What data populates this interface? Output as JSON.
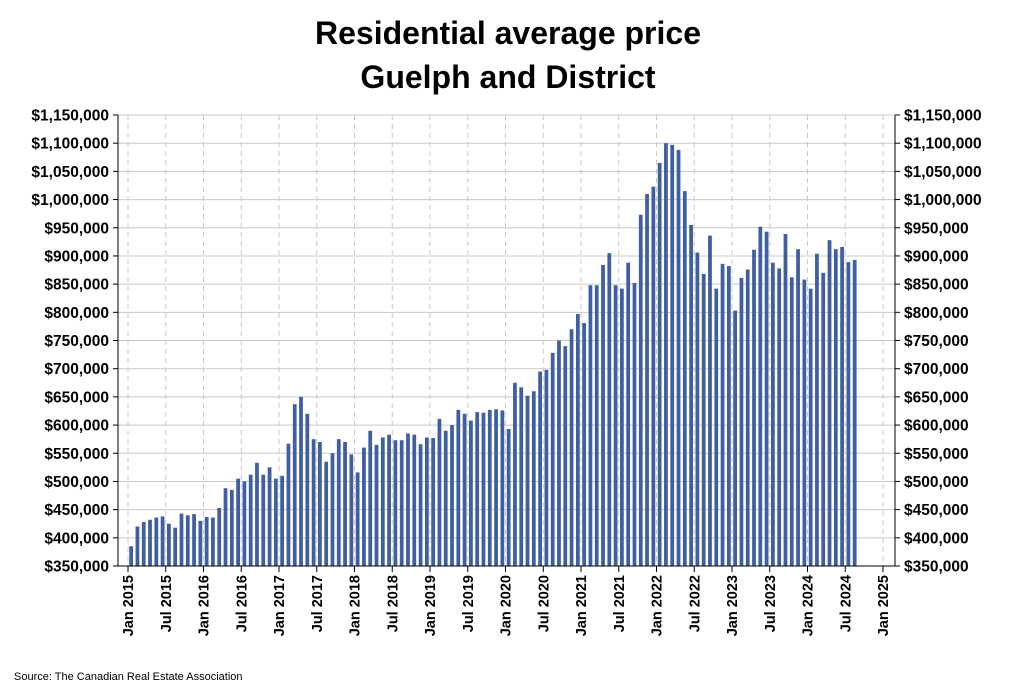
{
  "chart_data": {
    "type": "bar",
    "title": "Residential average price",
    "subtitle": "Guelph and District",
    "source": "Source: The Canadian Real Estate Association",
    "ylim": [
      350000,
      1150000
    ],
    "ytick_step": 50000,
    "ytick_labels": [
      "$350,000",
      "$400,000",
      "$450,000",
      "$500,000",
      "$550,000",
      "$600,000",
      "$650,000",
      "$700,000",
      "$750,000",
      "$800,000",
      "$850,000",
      "$900,000",
      "$950,000",
      "$1,000,000",
      "$1,050,000",
      "$1,100,000",
      "$1,150,000"
    ],
    "xtick_labels": [
      "Jan 2015",
      "Jul 2015",
      "Jan 2016",
      "Jul 2016",
      "Jan 2017",
      "Jul 2017",
      "Jan 2018",
      "Jul 2018",
      "Jan 2019",
      "Jul 2019",
      "Jan 2020",
      "Jul 2020",
      "Jan 2021",
      "Jul 2021",
      "Jan 2022",
      "Jul 2022",
      "Jan 2023",
      "Jul 2023",
      "Jan 2024",
      "Jul 2024",
      "Jan 2025"
    ],
    "x_axis_months": 120,
    "bar_color": "#3F5FA1",
    "grid": true,
    "series": [
      {
        "name": "Residential average price",
        "start": "Jan 2015",
        "values": [
          385000,
          420000,
          428000,
          432000,
          436000,
          438000,
          425000,
          418000,
          443000,
          440000,
          442000,
          430000,
          437000,
          436000,
          453000,
          488000,
          485000,
          505000,
          500000,
          512000,
          533000,
          512000,
          525000,
          505000,
          510000,
          567000,
          637000,
          650000,
          620000,
          575000,
          570000,
          535000,
          550000,
          575000,
          570000,
          548000,
          516000,
          560000,
          590000,
          565000,
          578000,
          583000,
          573000,
          573000,
          585000,
          583000,
          566000,
          578000,
          577000,
          611000,
          590000,
          600000,
          627000,
          620000,
          608000,
          623000,
          622000,
          627000,
          628000,
          626000,
          593000,
          675000,
          667000,
          652000,
          660000,
          695000,
          698000,
          728000,
          750000,
          740000,
          770000,
          797000,
          781000,
          848000,
          848000,
          884000,
          905000,
          848000,
          842000,
          888000,
          852000,
          973000,
          1010000,
          1023000,
          1065000,
          1100000,
          1097000,
          1088000,
          1015000,
          955000,
          906000,
          868000,
          936000,
          842000,
          886000,
          882000,
          803000,
          861000,
          876000,
          911000,
          952000,
          943000,
          888000,
          878000,
          939000,
          862000,
          912000,
          858000,
          842000,
          904000,
          870000,
          928000,
          912000,
          916000,
          889000,
          893000
        ]
      }
    ]
  }
}
